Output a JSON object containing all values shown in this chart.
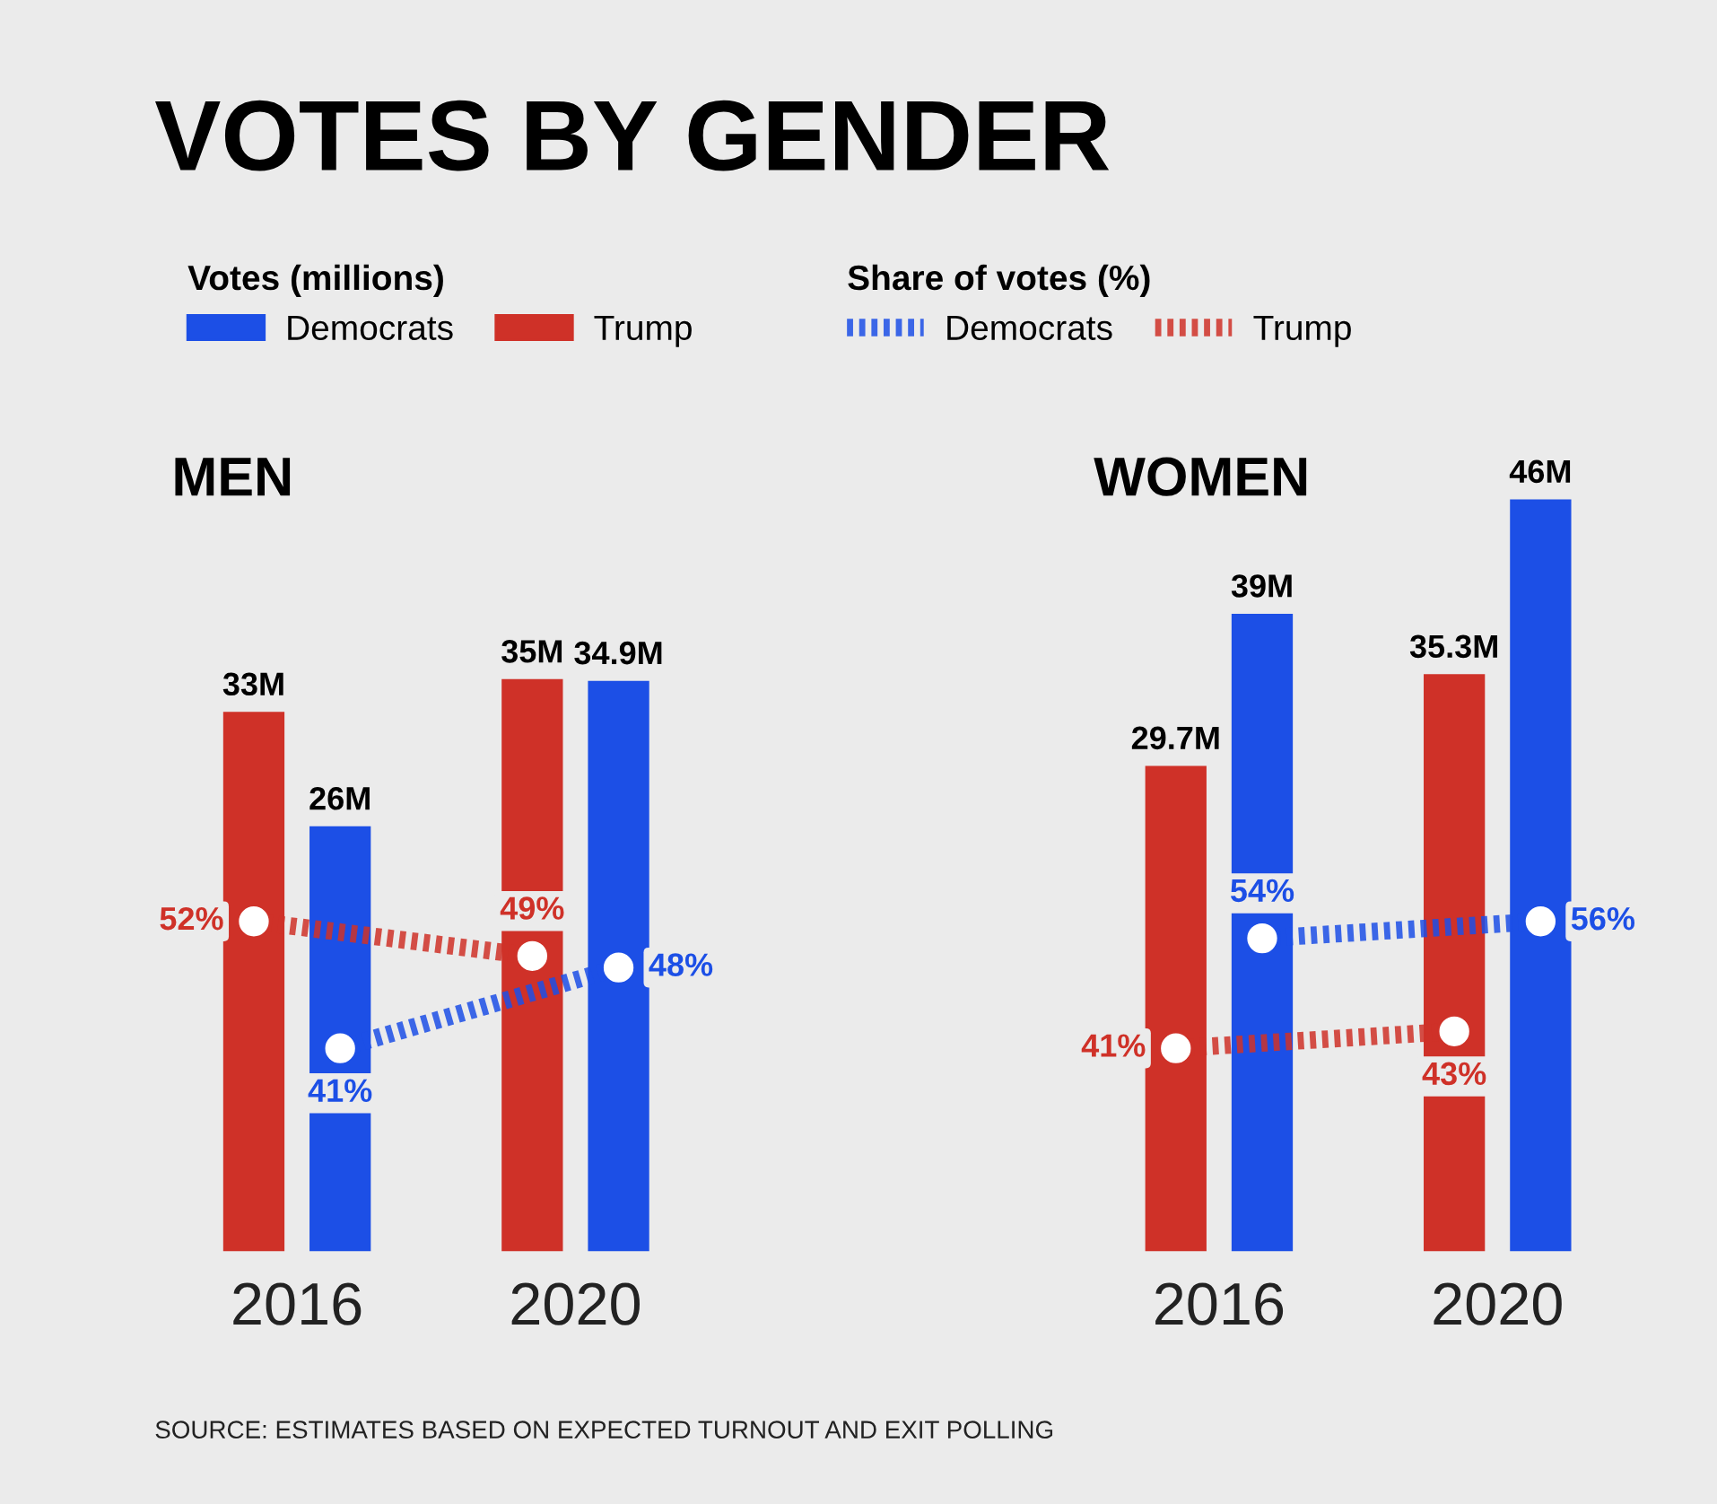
{
  "chart_data": [
    {
      "type": "bar",
      "title": "VOTES BY GENDER",
      "subtitle": "MEN",
      "categories": [
        "2016",
        "2020"
      ],
      "tick_labels": "x",
      "legend": "top",
      "legend_title": "Votes (millions)",
      "marker": "circle",
      "line_style": "dotted",
      "grid": false,
      "annotations": [
        "SOURCE: ESTIMATES BASED ON EXPECTED TURNOUT AND EXIT POLLING"
      ],
      "series": [
        {
          "name": "Trump",
          "color": "#cf3128",
          "values": [
            33,
            35
          ],
          "value_labels": [
            "33M",
            "35M"
          ]
        },
        {
          "name": "Democrats",
          "color": "#1c4fe6",
          "values": [
            26,
            34.9
          ],
          "value_labels": [
            "26M",
            "34.9M"
          ]
        },
        {
          "type": "line",
          "axis": "y2",
          "color": "#cf3128",
          "values": [
            52,
            49
          ],
          "value_labels": [
            "52%",
            "49%"
          ]
        },
        {
          "type": "line",
          "axis": "y2",
          "color": "#1c4fe6",
          "values": [
            41,
            48
          ],
          "value_labels": [
            "41%",
            "48%"
          ]
        }
      ]
    },
    {
      "type": "bar",
      "subtitle": "WOMEN",
      "categories": [
        "2016",
        "2020"
      ],
      "tick_labels": "x",
      "legend": "top left",
      "legend_title": "Share of votes (%)",
      "marker": "circle",
      "line_style": "dotted",
      "grid": false,
      "series": [
        {
          "color": "#cf3128",
          "values": [
            29.7,
            35.3
          ],
          "value_labels": [
            "29.7M",
            "35.3M"
          ]
        },
        {
          "color": "#1c4fe6",
          "values": [
            39,
            46
          ],
          "value_labels": [
            "39M",
            "46M"
          ]
        },
        {
          "name": "Trump",
          "type": "line",
          "axis": "y2",
          "color": "#cf3128",
          "values": [
            41,
            43
          ],
          "value_labels": [
            "41%",
            "43%"
          ]
        },
        {
          "name": "Democrats",
          "type": "line",
          "axis": "y2",
          "color": "#1c4fe6",
          "values": [
            54,
            56
          ],
          "value_labels": [
            "54%",
            "56%"
          ]
        }
      ]
    }
  ]
}
